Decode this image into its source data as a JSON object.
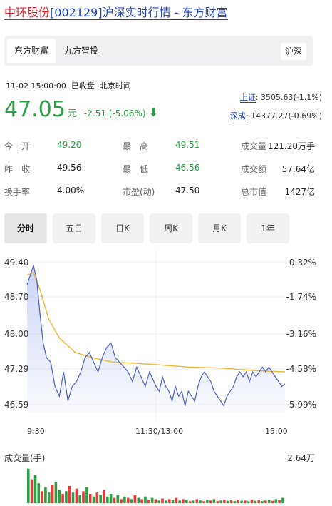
{
  "header": {
    "stock_name": "中环股份",
    "code": "[002129]",
    "title_tail": "沪深实时行情 - 东方财富"
  },
  "tabs": {
    "items": [
      "东方财富",
      "九方智投"
    ],
    "active": "东方财富",
    "market_button": "沪深"
  },
  "quote": {
    "datetime": "11-02 15:00:00",
    "status": "已收盘",
    "timezone": "北京时间",
    "price": "47.05",
    "unit": "元",
    "change": "-2.51 (-5.06%)",
    "direction": "down"
  },
  "indices": [
    {
      "label": "上证",
      "value": ": 3505.63(-1.1%)"
    },
    {
      "label": "深成",
      "value": ": 14377.27(-0.69%)"
    }
  ],
  "stats": [
    {
      "label": "今　开",
      "value": "49.20",
      "color": "green"
    },
    {
      "label": "最　高",
      "value": "49.51",
      "color": "green"
    },
    {
      "label": "成交量",
      "value": "121.20万手",
      "color": "black"
    },
    {
      "label": "昨　收",
      "value": "49.56",
      "color": "black"
    },
    {
      "label": "最　低",
      "value": "46.56",
      "color": "green"
    },
    {
      "label": "成交额",
      "value": "57.64亿",
      "color": "black"
    },
    {
      "label": "换手率",
      "value": "4.00%",
      "color": "black"
    },
    {
      "label": "市盈(动)",
      "value": "47.50",
      "color": "black"
    },
    {
      "label": "总市值",
      "value": "1427亿",
      "color": "black"
    }
  ],
  "period_tabs": [
    "分时",
    "五日",
    "日K",
    "周K",
    "月K",
    "1年"
  ],
  "period_active": "分时",
  "colors": {
    "up": "#e83a3a",
    "down": "#2aa043",
    "price_line": "#4a5fc6",
    "avg_line": "#e8b830",
    "link_blue": "#1a3fbf",
    "brand_red": "#d9202a"
  },
  "chart_data": {
    "type": "line",
    "title": "",
    "y_left_ticks": [
      "49.40",
      "48.70",
      "48.00",
      "47.29",
      "46.59"
    ],
    "y_right_ticks": [
      "-0.32%",
      "-1.74%",
      "-3.16%",
      "-4.58%",
      "-5.99%"
    ],
    "x_ticks": [
      "9:30",
      "11:30/13:00",
      "15:00"
    ],
    "ylim": [
      46.46,
      49.56
    ],
    "x_range_minutes": [
      0,
      240
    ],
    "series": [
      {
        "key": "price",
        "x": [
          0,
          3,
          6,
          9,
          12,
          15,
          18,
          22,
          26,
          30,
          34,
          38,
          42,
          46,
          50,
          54,
          58,
          62,
          66,
          70,
          74,
          78,
          82,
          86,
          90,
          94,
          98,
          102,
          106,
          110,
          114,
          118,
          120,
          123,
          126,
          129,
          132,
          135,
          138,
          141,
          144,
          147,
          150,
          153,
          156,
          159,
          162,
          165,
          168,
          171,
          174,
          177,
          180,
          183,
          186,
          189,
          192,
          195,
          198,
          201,
          204,
          207,
          210,
          213,
          216,
          219,
          222,
          225,
          228,
          231,
          234,
          237,
          240
        ],
        "values": [
          49.1,
          49.3,
          49.5,
          49.2,
          48.5,
          47.9,
          47.6,
          47.5,
          47.0,
          46.8,
          47.3,
          46.7,
          47.0,
          47.1,
          47.3,
          47.6,
          47.7,
          47.5,
          47.3,
          47.6,
          47.8,
          47.9,
          47.6,
          47.5,
          47.4,
          47.3,
          47.1,
          47.4,
          47.2,
          47.0,
          47.3,
          47.1,
          47.0,
          46.9,
          47.2,
          47.0,
          46.9,
          46.7,
          47.0,
          46.8,
          46.9,
          46.6,
          46.9,
          46.8,
          46.7,
          47.0,
          47.2,
          47.3,
          47.2,
          47.1,
          46.9,
          46.8,
          46.7,
          46.6,
          46.8,
          46.9,
          47.0,
          47.2,
          47.3,
          47.2,
          47.3,
          47.1,
          47.3,
          47.2,
          47.3,
          47.4,
          47.3,
          47.4,
          47.3,
          47.2,
          47.1,
          47.0,
          47.05
        ]
      },
      {
        "key": "average",
        "x": [
          0,
          6,
          12,
          20,
          30,
          45,
          60,
          80,
          100,
          120,
          150,
          180,
          210,
          240
        ],
        "values": [
          49.3,
          49.35,
          49.0,
          48.4,
          48.0,
          47.7,
          47.6,
          47.5,
          47.48,
          47.45,
          47.4,
          47.38,
          47.33,
          47.3
        ]
      }
    ]
  },
  "volume": {
    "label": "成交量(手)",
    "max_label": "2.64万",
    "max_value": 26400,
    "bars": [
      {
        "v": 26000,
        "d": "down"
      },
      {
        "v": 18000,
        "d": "up"
      },
      {
        "v": 21000,
        "d": "down"
      },
      {
        "v": 15000,
        "d": "down"
      },
      {
        "v": 9000,
        "d": "up"
      },
      {
        "v": 12000,
        "d": "down"
      },
      {
        "v": 8000,
        "d": "down"
      },
      {
        "v": 14000,
        "d": "up"
      },
      {
        "v": 16000,
        "d": "down"
      },
      {
        "v": 10000,
        "d": "down"
      },
      {
        "v": 7000,
        "d": "up"
      },
      {
        "v": 9000,
        "d": "down"
      },
      {
        "v": 13000,
        "d": "up"
      },
      {
        "v": 8000,
        "d": "down"
      },
      {
        "v": 11000,
        "d": "up"
      },
      {
        "v": 6000,
        "d": "down"
      },
      {
        "v": 9000,
        "d": "up"
      },
      {
        "v": 12000,
        "d": "down"
      },
      {
        "v": 7000,
        "d": "up"
      },
      {
        "v": 5000,
        "d": "down"
      },
      {
        "v": 8000,
        "d": "up"
      },
      {
        "v": 6000,
        "d": "down"
      },
      {
        "v": 10000,
        "d": "up"
      },
      {
        "v": 5000,
        "d": "down"
      },
      {
        "v": 7000,
        "d": "down"
      },
      {
        "v": 4000,
        "d": "up"
      },
      {
        "v": 6000,
        "d": "down"
      },
      {
        "v": 3000,
        "d": "up"
      },
      {
        "v": 5000,
        "d": "down"
      },
      {
        "v": 4000,
        "d": "up"
      },
      {
        "v": 3000,
        "d": "down"
      },
      {
        "v": 6000,
        "d": "up"
      },
      {
        "v": 4000,
        "d": "down"
      },
      {
        "v": 3000,
        "d": "up"
      },
      {
        "v": 5000,
        "d": "down"
      },
      {
        "v": 2500,
        "d": "up"
      },
      {
        "v": 4000,
        "d": "down"
      },
      {
        "v": 3000,
        "d": "up"
      },
      {
        "v": 2000,
        "d": "down"
      },
      {
        "v": 3500,
        "d": "up"
      },
      {
        "v": 2000,
        "d": "down"
      },
      {
        "v": 3000,
        "d": "up"
      },
      {
        "v": 2500,
        "d": "down"
      },
      {
        "v": 4000,
        "d": "up"
      },
      {
        "v": 2000,
        "d": "down"
      },
      {
        "v": 3000,
        "d": "up"
      },
      {
        "v": 2500,
        "d": "down"
      },
      {
        "v": 1500,
        "d": "up"
      },
      {
        "v": 2000,
        "d": "down"
      },
      {
        "v": 3000,
        "d": "up"
      },
      {
        "v": 2000,
        "d": "down"
      },
      {
        "v": 1500,
        "d": "up"
      },
      {
        "v": 2500,
        "d": "down"
      },
      {
        "v": 2000,
        "d": "up"
      },
      {
        "v": 3000,
        "d": "down"
      },
      {
        "v": 1500,
        "d": "up"
      },
      {
        "v": 2000,
        "d": "down"
      },
      {
        "v": 2500,
        "d": "up"
      },
      {
        "v": 1800,
        "d": "down"
      },
      {
        "v": 2200,
        "d": "up"
      },
      {
        "v": 1600,
        "d": "down"
      },
      {
        "v": 2400,
        "d": "up"
      },
      {
        "v": 1800,
        "d": "down"
      },
      {
        "v": 2000,
        "d": "up"
      },
      {
        "v": 1500,
        "d": "down"
      },
      {
        "v": 2600,
        "d": "up"
      },
      {
        "v": 1800,
        "d": "down"
      },
      {
        "v": 2200,
        "d": "up"
      },
      {
        "v": 1600,
        "d": "down"
      },
      {
        "v": 2000,
        "d": "up"
      },
      {
        "v": 2500,
        "d": "down"
      },
      {
        "v": 1800,
        "d": "up"
      },
      {
        "v": 3000,
        "d": "down"
      },
      {
        "v": 2200,
        "d": "up"
      },
      {
        "v": 4000,
        "d": "down"
      }
    ]
  }
}
